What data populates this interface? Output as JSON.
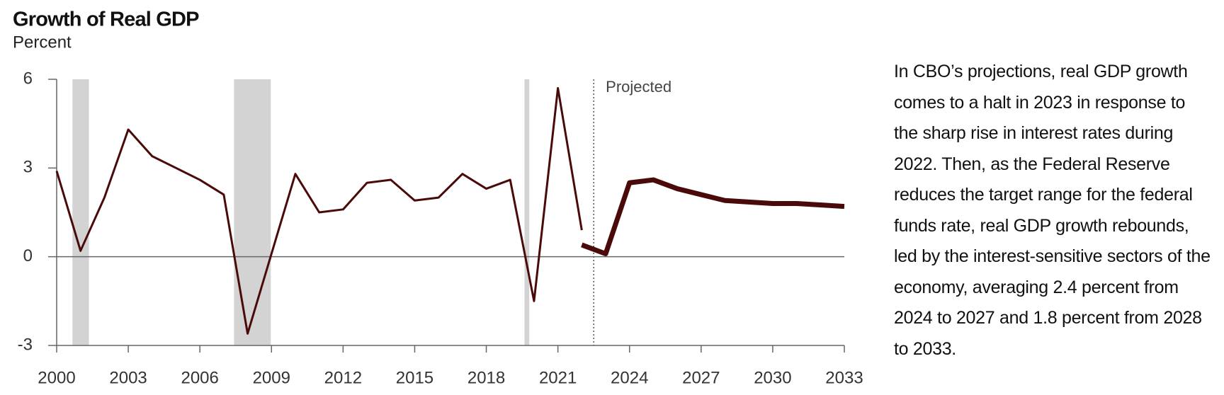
{
  "chart_data": {
    "type": "line",
    "title": "Growth of Real GDP",
    "subtitle": "Percent",
    "annotation": "Projected",
    "projected_x": 2022.5,
    "description": "In CBO’s projections, real GDP growth comes to a halt in 2023 in response to the sharp rise in interest rates during 2022. Then, as the Federal Reserve reduces the target range for the federal funds rate, real GDP growth rebounds, led by the interest-sensitive sectors of the economy, averaging 2.4 percent from 2024 to 2027 and 1.8 percent from 2028 to 2033.",
    "x": [
      2000,
      2001,
      2002,
      2003,
      2004,
      2005,
      2006,
      2007,
      2008,
      2009,
      2010,
      2011,
      2012,
      2013,
      2014,
      2015,
      2016,
      2017,
      2018,
      2019,
      2020,
      2021,
      2022,
      2023,
      2024,
      2025,
      2026,
      2027,
      2028,
      2029,
      2030,
      2031,
      2032,
      2033
    ],
    "series": [
      {
        "color": "#4a0a0a",
        "width": 3,
        "values": [
          2.9,
          0.2,
          2.0,
          4.3,
          3.4,
          3.0,
          2.6,
          2.1,
          -2.6,
          0.1,
          2.8,
          1.5,
          1.6,
          2.5,
          2.6,
          1.9,
          2.0,
          2.8,
          2.3,
          2.6,
          -1.5,
          5.7,
          0.9,
          null,
          null,
          null,
          null,
          null,
          null,
          null,
          null,
          null,
          null,
          null
        ]
      },
      {
        "color": "#4a0a0a",
        "width": 7,
        "values": [
          null,
          null,
          null,
          null,
          null,
          null,
          null,
          null,
          null,
          null,
          null,
          null,
          null,
          null,
          null,
          null,
          null,
          null,
          null,
          null,
          null,
          null,
          0.4,
          0.1,
          2.5,
          2.6,
          2.3,
          2.1,
          1.9,
          1.85,
          1.8,
          1.8,
          1.75,
          1.7
        ]
      }
    ],
    "recessions": [
      [
        2000.66,
        2001.35
      ],
      [
        2007.43,
        2008.97
      ],
      [
        2019.6,
        2019.8
      ]
    ],
    "recession_color": "#d3d3d3",
    "xlim": [
      2000,
      2033
    ],
    "xticks": [
      2000,
      2003,
      2006,
      2009,
      2012,
      2015,
      2018,
      2021,
      2024,
      2027,
      2030,
      2033
    ],
    "ylim": [
      -3,
      6
    ],
    "yticks": [
      -3,
      0,
      3,
      6
    ]
  }
}
